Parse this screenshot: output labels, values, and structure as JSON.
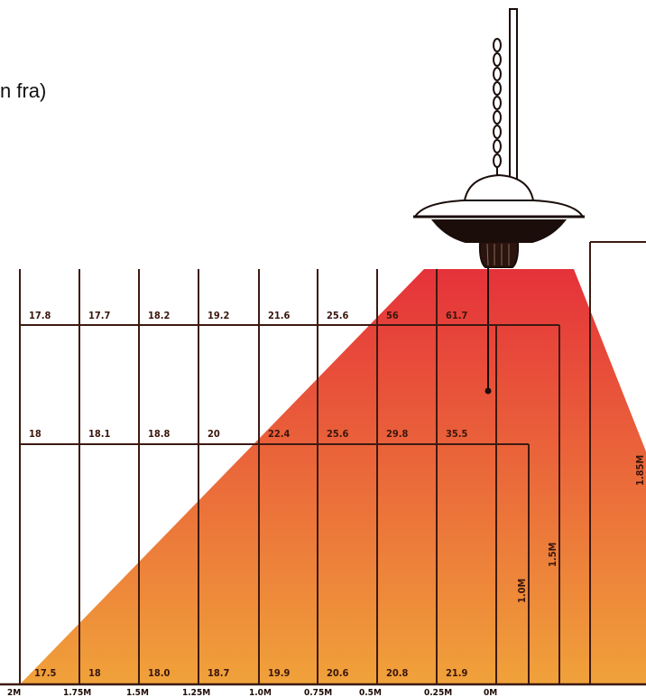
{
  "caption": "n fra)",
  "rows": [
    {
      "values": [
        "17.8",
        "17.7",
        "18.2",
        "19.2",
        "21.6",
        "25.6",
        "56",
        "61.7"
      ]
    },
    {
      "values": [
        "18",
        "18.1",
        "18.8",
        "20",
        "22.4",
        "25.6",
        "29.8",
        "35.5"
      ]
    },
    {
      "values": [
        "17.5",
        "18",
        "18.0",
        "18.7",
        "19.9",
        "20.6",
        "20.8",
        "21.9"
      ]
    }
  ],
  "distances": [
    "2M",
    "1.75M",
    "1.5M",
    "1.25M",
    "1.0M",
    "0.75M",
    "0.5M",
    "0.25M",
    "0M"
  ],
  "heights": [
    "1.0M",
    "1.5M",
    "1.85M"
  ],
  "colors": {
    "cone_top": "#e5323a",
    "cone_bottom": "#f0a23a",
    "lines": "#3d1a12"
  },
  "heater_icon": "patio-heater-icon"
}
